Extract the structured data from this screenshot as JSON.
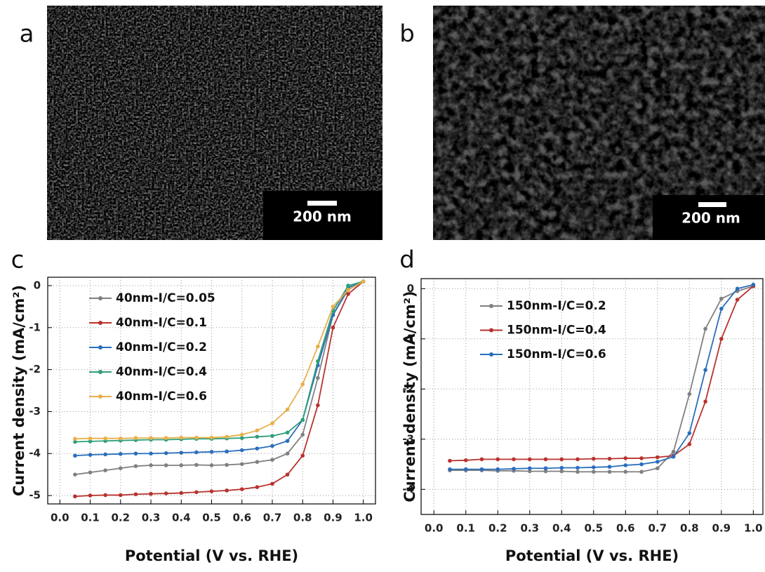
{
  "images": [
    {
      "panel": "a",
      "scale_bar": "200 nm"
    },
    {
      "panel": "b",
      "scale_bar": "200 nm"
    }
  ],
  "chart_data": [
    {
      "type": "line",
      "panel": "c",
      "x_label": "Potential (V vs. RHE)",
      "y_label": "Current density (mA/cm²)",
      "x": [
        0.05,
        0.1,
        0.15,
        0.2,
        0.25,
        0.3,
        0.35,
        0.4,
        0.45,
        0.5,
        0.55,
        0.6,
        0.65,
        0.7,
        0.75,
        0.8,
        0.85,
        0.9,
        0.95,
        1.0
      ],
      "xlim": [
        -0.04,
        1.04
      ],
      "ylim": [
        -5.2,
        0.2
      ],
      "grid": true,
      "xticks": [
        {
          "value": 0,
          "label": "0.0"
        },
        0.1,
        0.2,
        0.3,
        0.4,
        0.5,
        0.6,
        0.7,
        0.8,
        0.9,
        {
          "value": 1,
          "label": "1.0"
        }
      ],
      "yticks": [
        0,
        -1,
        -2,
        -3,
        -4,
        -5
      ],
      "series": [
        {
          "name": "40nm-I/C=0.05",
          "color": "#808080",
          "values": [
            -4.5,
            -4.45,
            -4.4,
            -4.35,
            -4.3,
            -4.28,
            -4.28,
            -4.28,
            -4.27,
            -4.28,
            -4.27,
            -4.25,
            -4.2,
            -4.15,
            -4.0,
            -3.55,
            -2.2,
            -0.7,
            -0.1,
            0.1
          ]
        },
        {
          "name": "40nm-I/C=0.1",
          "color": "#b8322f",
          "values": [
            -5.02,
            -5.0,
            -4.99,
            -4.99,
            -4.97,
            -4.96,
            -4.95,
            -4.94,
            -4.92,
            -4.9,
            -4.88,
            -4.85,
            -4.8,
            -4.72,
            -4.5,
            -4.05,
            -2.85,
            -1.0,
            -0.2,
            0.1
          ]
        },
        {
          "name": "40nm-I/C=0.2",
          "color": "#2a6ebb",
          "values": [
            -4.05,
            -4.03,
            -4.02,
            -4.01,
            -4.0,
            -4.0,
            -3.99,
            -3.98,
            -3.97,
            -3.96,
            -3.95,
            -3.92,
            -3.88,
            -3.82,
            -3.7,
            -3.2,
            -1.9,
            -0.7,
            -0.05,
            0.1
          ]
        },
        {
          "name": "40nm-I/C=0.4",
          "color": "#2e9e7a",
          "values": [
            -3.72,
            -3.71,
            -3.7,
            -3.69,
            -3.68,
            -3.67,
            -3.67,
            -3.66,
            -3.65,
            -3.65,
            -3.64,
            -3.63,
            -3.6,
            -3.58,
            -3.5,
            -3.2,
            -1.8,
            -0.6,
            0.0,
            0.1
          ]
        },
        {
          "name": "40nm-I/C=0.6",
          "color": "#e8b04a",
          "values": [
            -3.65,
            -3.64,
            -3.64,
            -3.64,
            -3.63,
            -3.63,
            -3.63,
            -3.62,
            -3.62,
            -3.62,
            -3.6,
            -3.55,
            -3.45,
            -3.28,
            -2.95,
            -2.35,
            -1.45,
            -0.5,
            -0.1,
            0.1
          ]
        }
      ]
    },
    {
      "type": "line",
      "panel": "d",
      "x_label": "Potential (V vs. RHE)",
      "y_label": "Current density (mA/cm²)",
      "x": [
        0.05,
        0.1,
        0.15,
        0.2,
        0.25,
        0.3,
        0.35,
        0.4,
        0.45,
        0.5,
        0.55,
        0.6,
        0.65,
        0.7,
        0.75,
        0.8,
        0.85,
        0.9,
        0.95,
        1.0
      ],
      "xlim": [
        -0.04,
        1.03
      ],
      "ylim": [
        -4.5,
        0.2
      ],
      "grid": true,
      "xticks": [
        {
          "value": 0,
          "label": "0.0"
        },
        0.1,
        0.2,
        0.3,
        0.4,
        0.5,
        0.6,
        0.7,
        0.8,
        0.9,
        {
          "value": 1,
          "label": "1.0"
        }
      ],
      "yticks": [
        0,
        -1,
        -2,
        -3,
        -4
      ],
      "series": [
        {
          "name": "150nm-I/C=0.2",
          "color": "#808080",
          "values": [
            -3.62,
            -3.62,
            -3.62,
            -3.63,
            -3.63,
            -3.64,
            -3.64,
            -3.64,
            -3.65,
            -3.65,
            -3.65,
            -3.65,
            -3.65,
            -3.58,
            -3.25,
            -2.1,
            -0.8,
            -0.2,
            -0.05,
            0.05
          ]
        },
        {
          "name": "150nm-I/C=0.4",
          "color": "#b8322f",
          "values": [
            -3.43,
            -3.42,
            -3.4,
            -3.4,
            -3.4,
            -3.4,
            -3.4,
            -3.4,
            -3.4,
            -3.39,
            -3.39,
            -3.38,
            -3.38,
            -3.36,
            -3.33,
            -3.1,
            -2.25,
            -1.0,
            -0.22,
            0.05
          ]
        },
        {
          "name": "150nm-I/C=0.6",
          "color": "#2a6ebb",
          "values": [
            -3.6,
            -3.6,
            -3.6,
            -3.6,
            -3.59,
            -3.58,
            -3.58,
            -3.57,
            -3.57,
            -3.56,
            -3.55,
            -3.52,
            -3.5,
            -3.45,
            -3.35,
            -2.88,
            -1.62,
            -0.4,
            0.0,
            0.08
          ]
        }
      ]
    }
  ]
}
